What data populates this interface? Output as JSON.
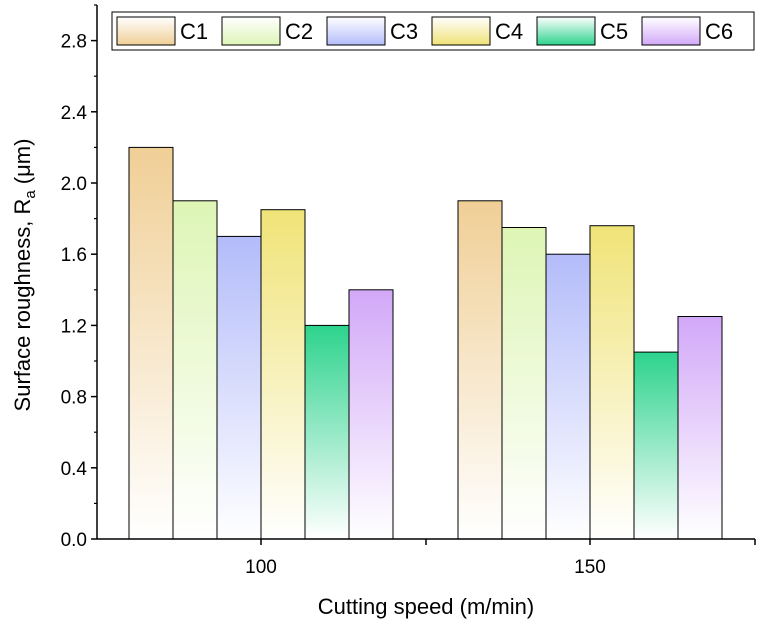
{
  "chart_data": {
    "type": "bar",
    "categories": [
      "100",
      "150"
    ],
    "series": [
      {
        "name": "C1",
        "values": [
          2.2,
          1.9
        ],
        "color": "#F0CF96"
      },
      {
        "name": "C2",
        "values": [
          1.9,
          1.75
        ],
        "color": "#DDF5B5"
      },
      {
        "name": "C3",
        "values": [
          1.7,
          1.6
        ],
        "color": "#B3BCFA"
      },
      {
        "name": "C4",
        "values": [
          1.85,
          1.76
        ],
        "color": "#F0E377"
      },
      {
        "name": "C5",
        "values": [
          1.2,
          1.05
        ],
        "color": "#2DD38D"
      },
      {
        "name": "C6",
        "values": [
          1.4,
          1.25
        ],
        "color": "#D2A8F8"
      }
    ],
    "gradient_fade_color": "#FFFFFF",
    "xlabel": "Cutting speed (m/min)",
    "ylabel": {
      "text": "Surface roughness, R",
      "subscript": "a",
      "suffix": " (μm)"
    },
    "ylim": [
      0,
      3.0
    ],
    "yticks": [
      "0.0",
      "0.4",
      "0.8",
      "1.2",
      "1.6",
      "2.0",
      "2.4",
      "2.8"
    ],
    "grid": false,
    "legend_position": "top",
    "frame": "left-and-bottom axes"
  }
}
